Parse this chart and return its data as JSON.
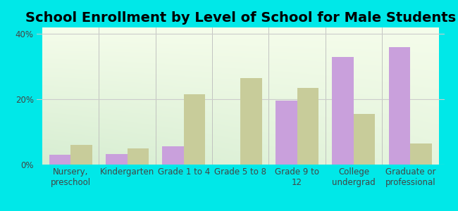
{
  "title": "School Enrollment by Level of School for Male Students",
  "categories": [
    "Nursery,\npreschool",
    "Kindergarten",
    "Grade 1 to 4",
    "Grade 5 to 8",
    "Grade 9 to\n12",
    "College\nundergrad",
    "Graduate or\nprofessional"
  ],
  "mesilla": [
    3.0,
    3.2,
    5.5,
    0,
    19.5,
    33.0,
    36.0
  ],
  "new_mexico": [
    6.0,
    5.0,
    21.5,
    26.5,
    23.5,
    15.5,
    6.5
  ],
  "mesilla_color": "#c9a0dc",
  "new_mexico_color": "#c8cc9a",
  "background_color": "#00e8e8",
  "ylim": [
    0,
    42
  ],
  "yticks": [
    0,
    20,
    40
  ],
  "ytick_labels": [
    "0%",
    "20%",
    "40%"
  ],
  "title_fontsize": 14,
  "tick_fontsize": 8.5,
  "legend_fontsize": 10,
  "bar_width": 0.38
}
